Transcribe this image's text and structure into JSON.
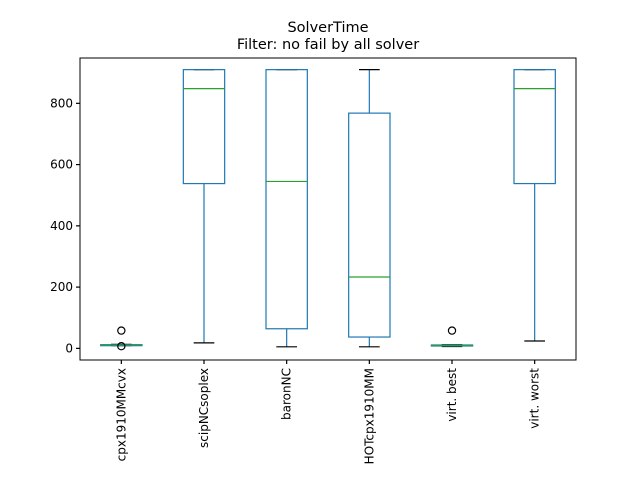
{
  "chart_data": {
    "type": "box",
    "title": "SolverTime",
    "subtitle": "Filter: no fail by all solver",
    "xlabel": "",
    "ylabel": "",
    "ylim": [
      -38,
      948
    ],
    "yticks": [
      0,
      200,
      400,
      600,
      800
    ],
    "grid": false,
    "legend": "none",
    "colors": {
      "box": "#1f77b4",
      "median": "#2ca02c",
      "whisker": "#000000",
      "outlier": "#000000"
    },
    "categories": [
      "cpx1910MMcvx",
      "scipNCsoplex",
      "baronNC",
      "HOTcpx1910MM",
      "virt. best",
      "virt. worst"
    ],
    "boxes": [
      {
        "label": "cpx1910MMcvx",
        "whislo": 9,
        "q1": 9,
        "med": 10,
        "q3": 12,
        "whishi": 13,
        "fliers": [
          7,
          58
        ]
      },
      {
        "label": "scipNCsoplex",
        "whislo": 18,
        "q1": 538,
        "med": 848,
        "q3": 910,
        "whishi": 910,
        "fliers": []
      },
      {
        "label": "baronNC",
        "whislo": 5,
        "q1": 64,
        "med": 545,
        "q3": 910,
        "whishi": 910,
        "fliers": []
      },
      {
        "label": "HOTcpx1910MM",
        "whislo": 5,
        "q1": 37,
        "med": 233,
        "q3": 768,
        "whishi": 910,
        "fliers": []
      },
      {
        "label": "virt. best",
        "whislo": 6,
        "q1": 8,
        "med": 9,
        "q3": 11,
        "whishi": 12,
        "fliers": [
          58
        ]
      },
      {
        "label": "virt. worst",
        "whislo": 24,
        "q1": 538,
        "med": 848,
        "q3": 910,
        "whishi": 910,
        "fliers": []
      }
    ]
  }
}
